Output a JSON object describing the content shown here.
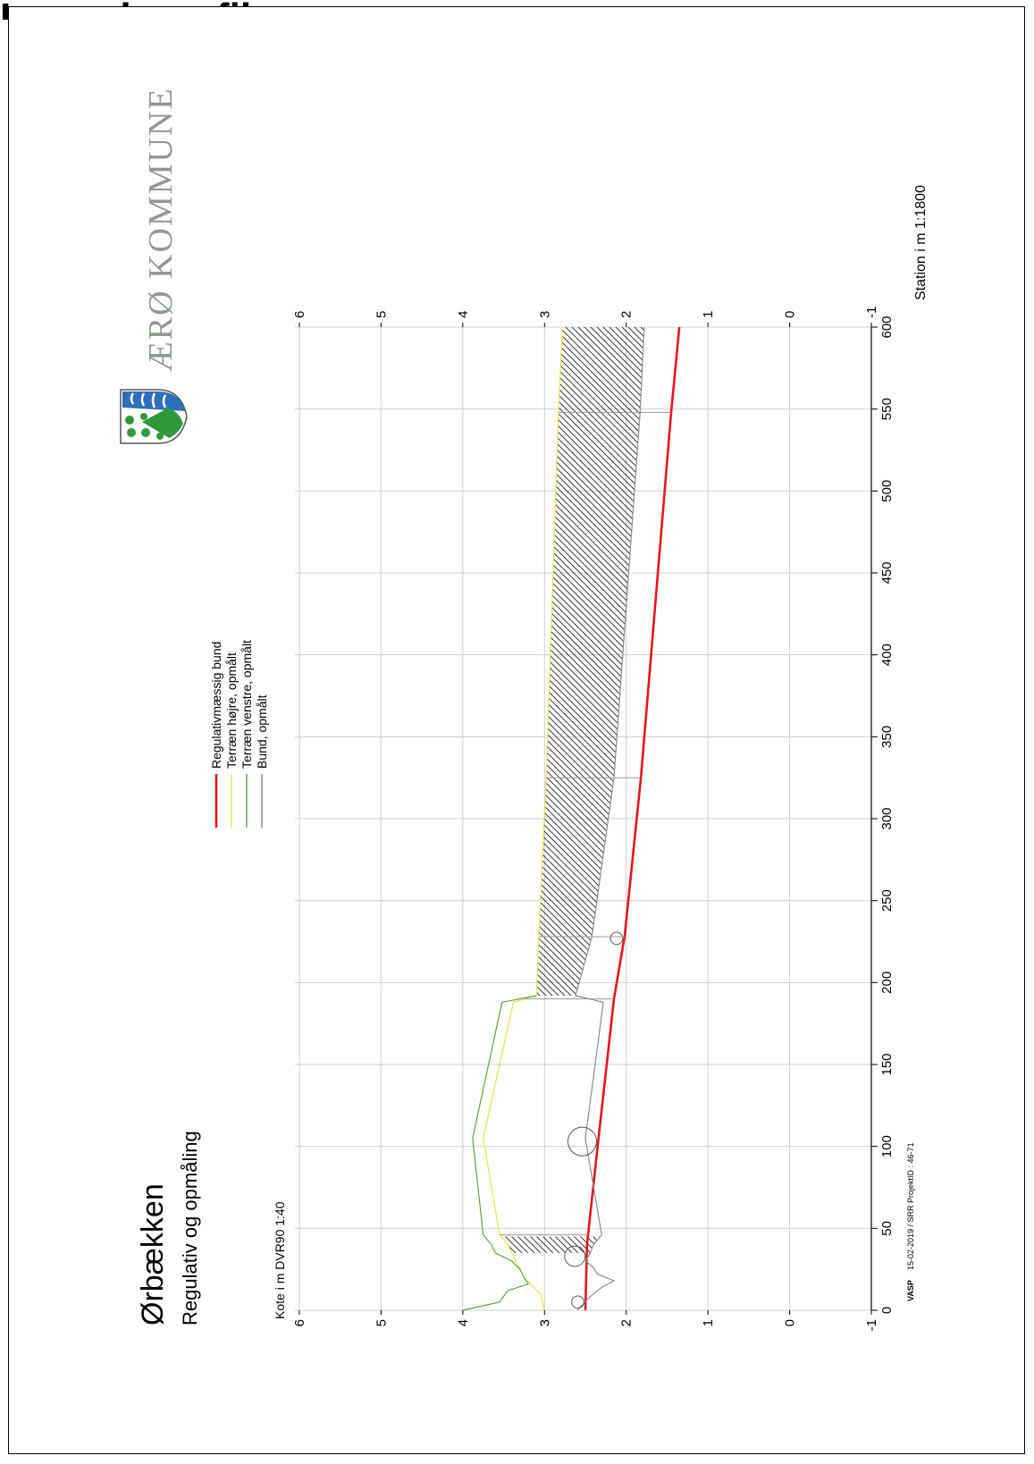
{
  "page": {
    "heading": "Længdeprofil"
  },
  "logo": {
    "text": "ÆRØ KOMMUNE",
    "icon": "aero-coat-of-arms-icon"
  },
  "chart_data": {
    "type": "line",
    "title": "Ørbækken",
    "subtitle": "Regulativ og opmåling",
    "xlabel": "Station i m 1:1800",
    "ylabel": "Kote i m DVR90 1:40",
    "xlim": [
      0,
      600
    ],
    "ylim": [
      -1,
      6
    ],
    "xticks": [
      0,
      50,
      100,
      150,
      200,
      250,
      300,
      350,
      400,
      450,
      500,
      550,
      600
    ],
    "yticks": [
      -1,
      0,
      1,
      2,
      3,
      4,
      5,
      6
    ],
    "grid": true,
    "legend_position": "top-center",
    "series": [
      {
        "name": "Regulativmæssig bund",
        "color": "#e8141b",
        "x": [
          0,
          40,
          100,
          190,
          228,
          325,
          548,
          600
        ],
        "y": [
          2.5,
          2.48,
          2.35,
          2.15,
          2.02,
          1.82,
          1.45,
          1.35
        ]
      },
      {
        "name": "Terræn højre, opmålt",
        "color": "#e6e64a",
        "x": [
          0,
          10,
          15,
          20,
          25,
          30,
          35,
          40,
          46,
          105,
          188,
          192,
          228,
          325,
          548,
          600
        ],
        "y": [
          3.0,
          3.05,
          3.15,
          3.25,
          3.3,
          3.35,
          3.4,
          3.45,
          3.55,
          3.75,
          3.38,
          3.1,
          3.07,
          2.98,
          2.83,
          2.78
        ]
      },
      {
        "name": "Terræn venstre, opmålt",
        "color": "#5aa83c",
        "x": [
          0,
          5,
          12,
          16,
          20,
          25,
          30,
          35,
          40,
          46,
          105,
          188,
          192
        ],
        "y": [
          4.0,
          3.55,
          3.45,
          3.2,
          3.25,
          3.3,
          3.4,
          3.6,
          3.65,
          3.75,
          3.88,
          3.52,
          3.1
        ]
      },
      {
        "name": "Bund, opmålt",
        "color": "#8c8c8c",
        "x": [
          0,
          8,
          14,
          18,
          22,
          26,
          30,
          34,
          40,
          46,
          105,
          188,
          192,
          228,
          325,
          548,
          600
        ],
        "y": [
          2.6,
          2.45,
          2.3,
          2.15,
          2.35,
          2.4,
          2.5,
          2.45,
          2.4,
          2.3,
          2.5,
          2.28,
          2.62,
          2.42,
          2.15,
          1.83,
          1.78
        ]
      }
    ],
    "structures": [
      {
        "x": 5,
        "diameter": 0.15
      },
      {
        "x": 33,
        "diameter": 0.25
      },
      {
        "x": 103,
        "diameter": 0.35
      },
      {
        "x": 227,
        "diameter": 0.15
      }
    ],
    "footer": {
      "brand": "VASP",
      "credit": "15-02-2019 / SRR   ProjektID : 46-71"
    }
  }
}
